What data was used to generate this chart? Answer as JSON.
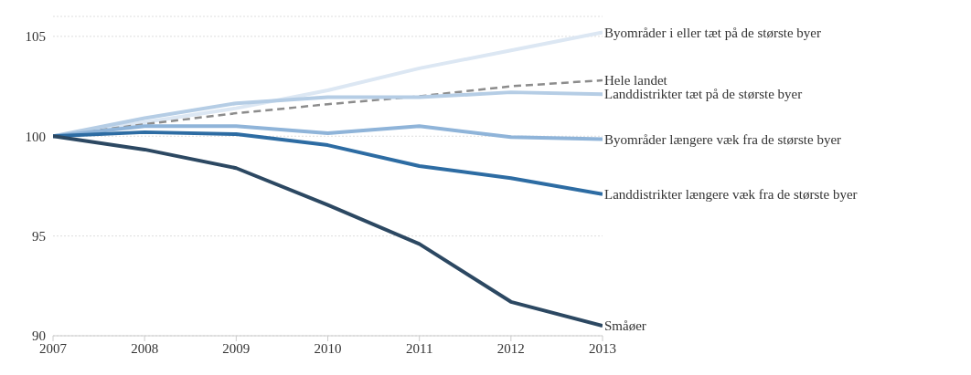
{
  "chart_data": {
    "type": "line",
    "x": [
      2007,
      2008,
      2009,
      2010,
      2011,
      2012,
      2013
    ],
    "xlim": [
      2007,
      2013
    ],
    "xticks": [
      2007,
      2008,
      2009,
      2010,
      2011,
      2012,
      2013
    ],
    "ylim": [
      90,
      106
    ],
    "yticks": [
      90,
      95,
      100,
      105
    ],
    "grid": "y",
    "legend": false,
    "marker": "none",
    "series": [
      {
        "name": "Byområder i eller tæt på de største byer",
        "color": "#dce7f3",
        "values": [
          100,
          100.7,
          101.4,
          102.3,
          103.4,
          104.3,
          105.2
        ]
      },
      {
        "name": "Hele landet",
        "color": "#8c8c8c",
        "line_style": "dashed",
        "values": [
          100,
          100.6,
          101.15,
          101.6,
          102.0,
          102.5,
          102.8
        ]
      },
      {
        "name": "Landdistrikter tæt på de største byer",
        "color": "#b5cde5",
        "values": [
          100,
          100.9,
          101.65,
          101.95,
          101.95,
          102.2,
          102.1
        ]
      },
      {
        "name": "Byområder længere væk fra de største byer",
        "color": "#8fb4d9",
        "values": [
          100,
          100.5,
          100.5,
          100.15,
          100.5,
          99.95,
          99.85
        ]
      },
      {
        "name": "Landdistrikter længere væk fra de største byer",
        "color": "#2d6ca3",
        "values": [
          100,
          100.2,
          100.1,
          99.55,
          98.5,
          97.9,
          97.1
        ]
      },
      {
        "name": "Småøer",
        "color": "#2c4862",
        "values": [
          100,
          99.33,
          98.4,
          96.55,
          94.6,
          91.7,
          90.5
        ]
      }
    ]
  }
}
